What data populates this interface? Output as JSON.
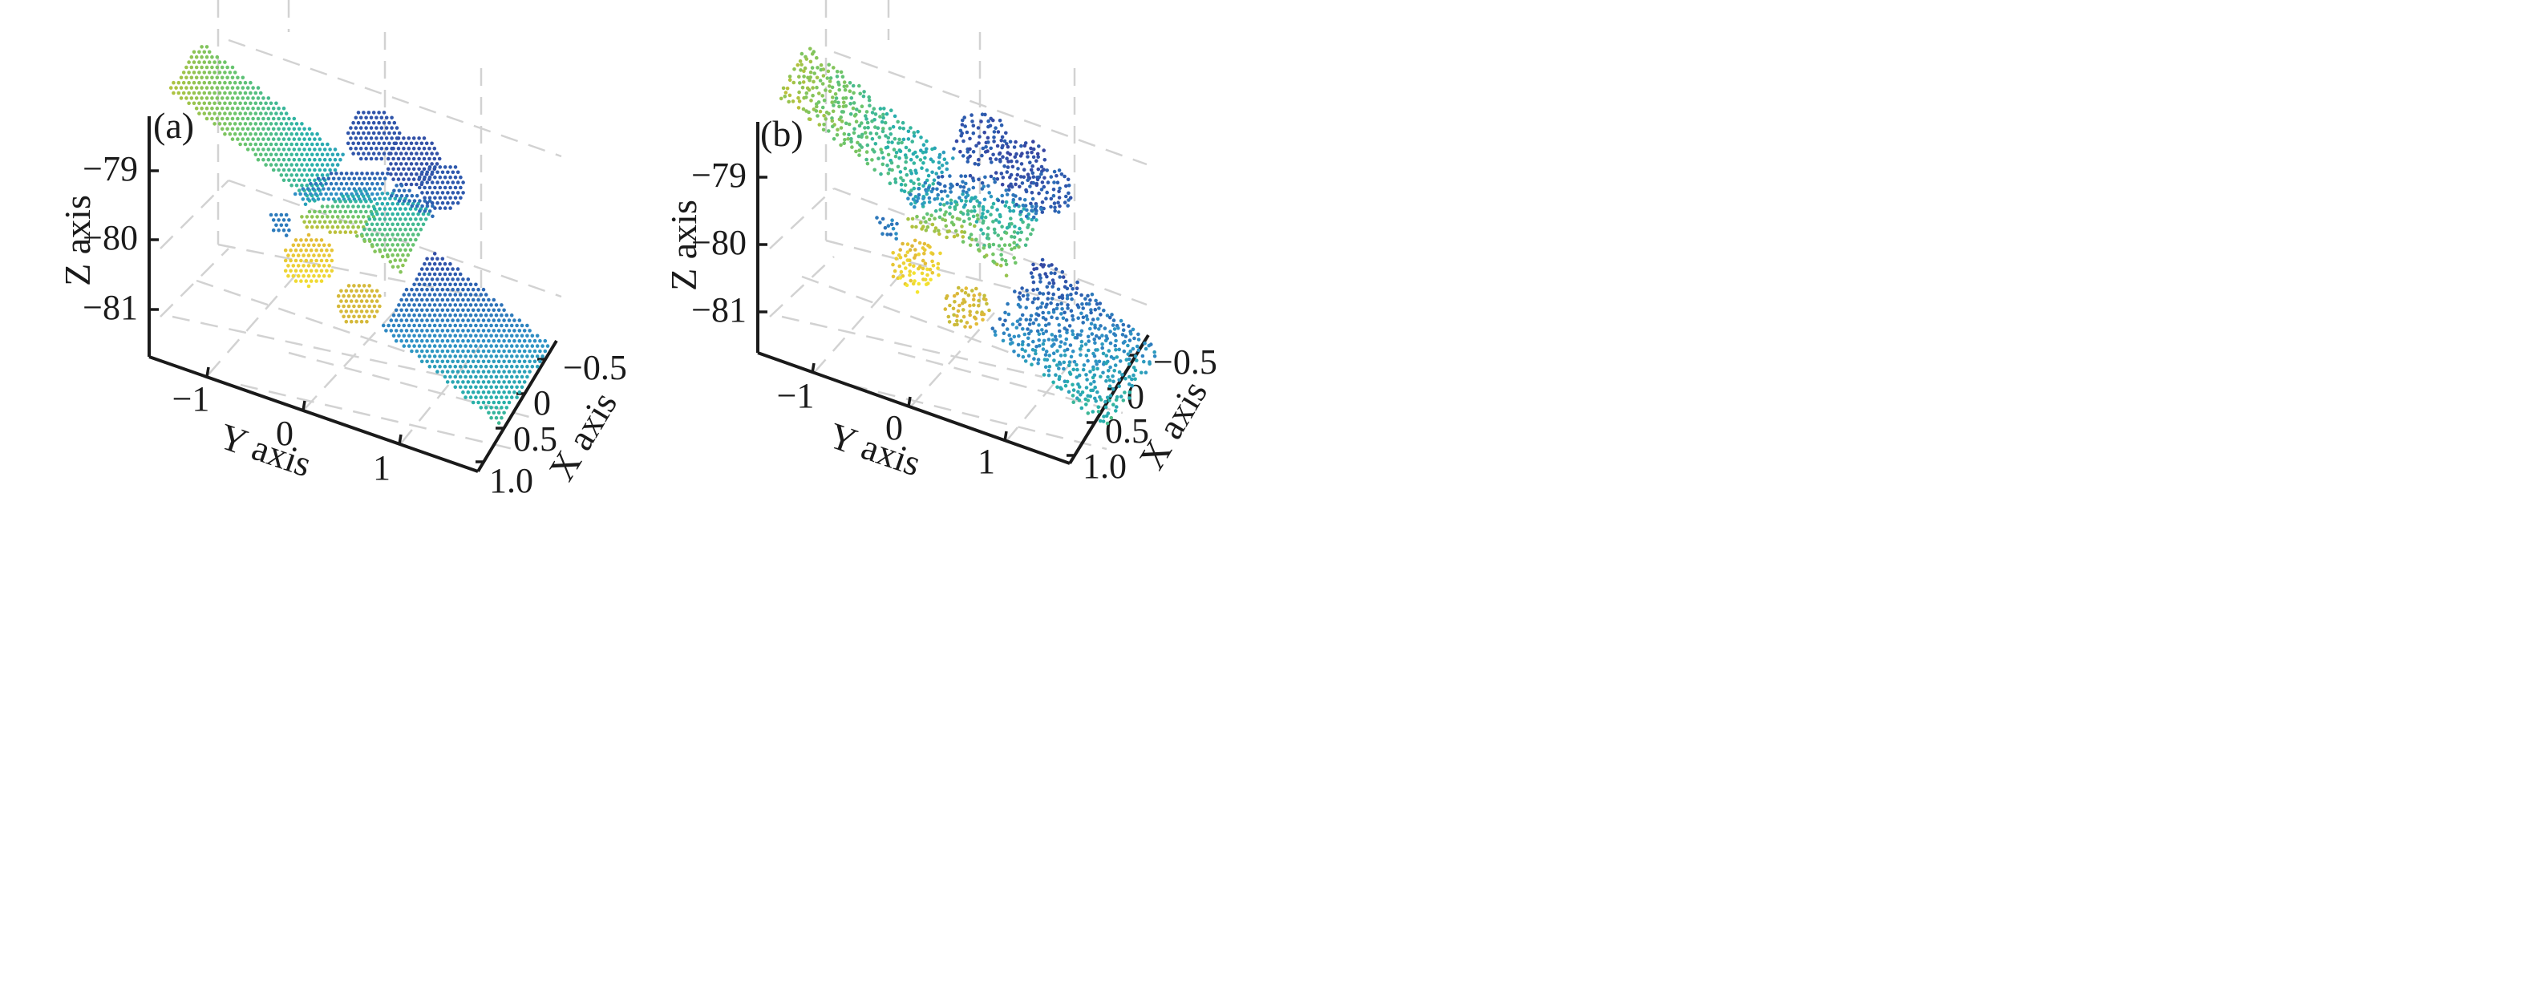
{
  "chart_data": [
    {
      "type": "scatter",
      "panel_label": "(a)",
      "xlabel": "X axis",
      "ylabel": "Y axis",
      "zlabel": "Z axis",
      "x_ticks": [
        "−0.5",
        "0",
        "0.5",
        "1.0"
      ],
      "y_ticks": [
        "−1",
        "0",
        "1"
      ],
      "z_ticks": [
        "−79",
        "−80",
        "−81"
      ],
      "xlim": [
        -0.7,
        1.0
      ],
      "ylim": [
        -1.4,
        1.7
      ],
      "zlim": [
        -81.6,
        -78.2
      ],
      "grid": true,
      "colormap": "parula",
      "sampling": "regular grid",
      "colors": [
        "#3b3c9c",
        "#2b5fb0",
        "#2f92c6",
        "#27b1aa",
        "#6cc56b",
        "#b5c23b",
        "#e0b63a",
        "#f5e62f"
      ]
    },
    {
      "type": "scatter",
      "panel_label": "(b)",
      "xlabel": "X axis",
      "ylabel": "Y axis",
      "zlabel": "Z axis",
      "x_ticks": [
        "−0.5",
        "0",
        "0.5",
        "1.0"
      ],
      "y_ticks": [
        "−1",
        "0",
        "1"
      ],
      "z_ticks": [
        "−79",
        "−80",
        "−81"
      ],
      "xlim": [
        -0.7,
        1.0
      ],
      "ylim": [
        -1.4,
        1.7
      ],
      "zlim": [
        -81.6,
        -78.2
      ],
      "grid": true,
      "colormap": "parula",
      "sampling": "random jitter",
      "colors": [
        "#3b3c9c",
        "#2b5fb0",
        "#2f92c6",
        "#27b1aa",
        "#6cc56b",
        "#b5c23b",
        "#e0b63a",
        "#f5e62f"
      ]
    }
  ]
}
